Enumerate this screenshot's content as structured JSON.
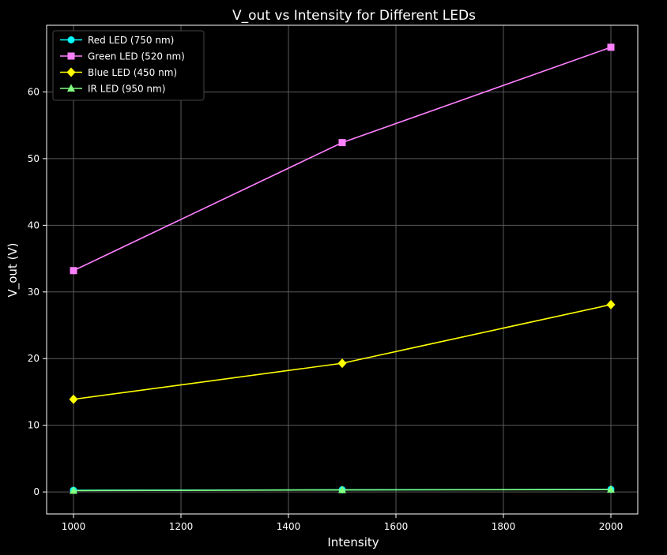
{
  "chart_data": {
    "type": "line",
    "title": "V_out vs Intensity for Different LEDs",
    "xlabel": "Intensity",
    "ylabel": "V_out (V)",
    "x": [
      1000,
      1500,
      2000
    ],
    "xlim": [
      950,
      2050
    ],
    "ylim": [
      -3.3,
      70
    ],
    "xticks": [
      1000,
      1200,
      1400,
      1600,
      1800,
      2000
    ],
    "yticks": [
      0,
      10,
      20,
      30,
      40,
      50,
      60
    ],
    "grid": true,
    "legend_position": "top-left",
    "series": [
      {
        "name": "Red LED (750 nm)",
        "values": [
          0.25,
          0.32,
          0.38
        ],
        "color": "#00ffff",
        "marker": "circle"
      },
      {
        "name": "Green LED (520 nm)",
        "values": [
          33.2,
          52.4,
          66.7
        ],
        "color": "#ff80ff",
        "marker": "square"
      },
      {
        "name": "Blue LED (450 nm)",
        "values": [
          13.9,
          19.3,
          28.1
        ],
        "color": "#ffff00",
        "marker": "diamond"
      },
      {
        "name": "IR LED (950 nm)",
        "values": [
          0.2,
          0.3,
          0.35
        ],
        "color": "#80ff80",
        "marker": "triangle"
      }
    ]
  }
}
